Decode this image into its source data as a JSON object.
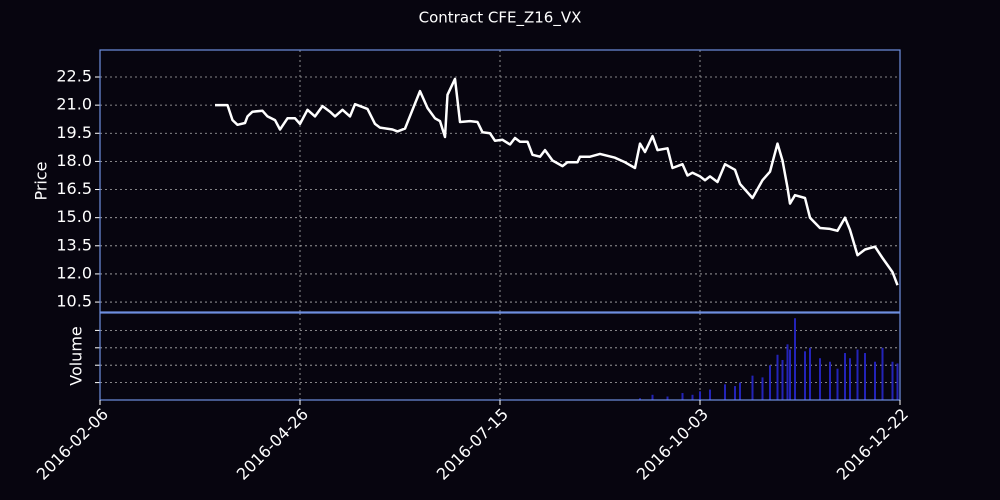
{
  "chart_data": [
    {
      "type": "line",
      "title": "Contract CFE_Z16_VX",
      "y_label": "Price",
      "color": "#ffffff",
      "grid": true,
      "xlim": [
        "2016-02-06",
        "2016-12-22"
      ],
      "ylim": [
        9.97,
        23.94
      ],
      "yticks": [
        10.5,
        {
          "value": 12,
          "label": "12.0"
        },
        13.5,
        {
          "value": 15,
          "label": "15.0"
        },
        16.5,
        {
          "value": 18,
          "label": "18.0"
        },
        19.5,
        {
          "value": 21,
          "label": "21.0"
        },
        22.5
      ],
      "x": [
        "2016-03-23",
        "2016-03-28",
        "2016-03-30",
        "2016-04-01",
        "2016-04-04",
        "2016-04-05",
        "2016-04-07",
        "2016-04-11",
        "2016-04-13",
        "2016-04-16",
        "2016-04-18",
        "2016-04-21",
        "2016-04-24",
        "2016-04-26",
        "2016-04-29",
        "2016-05-02",
        "2016-05-05",
        "2016-05-08",
        "2016-05-10",
        "2016-05-13",
        "2016-05-16",
        "2016-05-18",
        "2016-05-23",
        "2016-05-26",
        "2016-05-28",
        "2016-06-02",
        "2016-06-04",
        "2016-06-07",
        "2016-06-10",
        "2016-06-13",
        "2016-06-16",
        "2016-06-19",
        "2016-06-21",
        "2016-06-23",
        "2016-06-24",
        "2016-06-27",
        "2016-06-29",
        "2016-07-03",
        "2016-07-06",
        "2016-07-08",
        "2016-07-11",
        "2016-07-13",
        "2016-07-16",
        "2016-07-19",
        "2016-07-21",
        "2016-07-23",
        "2016-07-26",
        "2016-07-28",
        "2016-07-31",
        "2016-08-02",
        "2016-08-05",
        "2016-08-09",
        "2016-08-11",
        "2016-08-15",
        "2016-08-16",
        "2016-08-20",
        "2016-08-24",
        "2016-08-30",
        "2016-09-03",
        "2016-09-07",
        "2016-09-09",
        "2016-09-11",
        "2016-09-14",
        "2016-09-16",
        "2016-09-20",
        "2016-09-22",
        "2016-09-26",
        "2016-09-28",
        "2016-09-30",
        "2016-10-03",
        "2016-10-05",
        "2016-10-07",
        "2016-10-10",
        "2016-10-13",
        "2016-10-17",
        "2016-10-19",
        "2016-10-24",
        "2016-10-28",
        "2016-10-31",
        "2016-11-03",
        "2016-11-05",
        "2016-11-07",
        "2016-11-08",
        "2016-11-10",
        "2016-11-14",
        "2016-11-16",
        "2016-11-20",
        "2016-11-24",
        "2016-11-27",
        "2016-11-30",
        "2016-12-02",
        "2016-12-05",
        "2016-12-08",
        "2016-12-12",
        "2016-12-15",
        "2016-12-19",
        "2016-12-21"
      ],
      "values": [
        21.0,
        21.0,
        20.2,
        19.95,
        20.05,
        20.4,
        20.65,
        20.7,
        20.4,
        20.2,
        19.7,
        20.3,
        20.3,
        20.0,
        20.75,
        20.4,
        20.95,
        20.65,
        20.4,
        20.75,
        20.4,
        21.05,
        20.8,
        20.0,
        19.8,
        19.7,
        19.6,
        19.75,
        20.75,
        21.75,
        20.85,
        20.3,
        20.15,
        19.3,
        21.55,
        22.4,
        20.1,
        20.15,
        20.1,
        19.55,
        19.5,
        19.1,
        19.15,
        18.9,
        19.25,
        19.05,
        19.05,
        18.35,
        18.25,
        18.6,
        18.05,
        17.75,
        17.95,
        17.95,
        18.25,
        18.25,
        18.4,
        18.2,
        17.95,
        17.65,
        18.95,
        18.5,
        19.35,
        18.6,
        18.7,
        17.65,
        17.85,
        17.25,
        17.4,
        17.2,
        17.0,
        17.2,
        16.9,
        17.85,
        17.55,
        16.8,
        16.05,
        17.0,
        17.45,
        18.95,
        18.05,
        16.6,
        15.75,
        16.2,
        16.05,
        15.0,
        14.45,
        14.4,
        14.3,
        15.0,
        14.35,
        13.0,
        13.3,
        13.45,
        12.85,
        12.1,
        11.4
      ]
    },
    {
      "type": "bar",
      "y_label": "Volume",
      "color": "#2323b8",
      "grid": true,
      "xlim": [
        "2016-02-06",
        "2016-12-22"
      ],
      "xticks": [
        "2016-02-06",
        "2016-04-26",
        "2016-07-15",
        "2016-10-03",
        "2016-12-22"
      ],
      "ylim": [
        0,
        5000
      ],
      "yticks": [
        1000,
        2000,
        3000,
        4000
      ],
      "x": [
        "2016-09-09",
        "2016-09-14",
        "2016-09-20",
        "2016-09-26",
        "2016-09-30",
        "2016-10-03",
        "2016-10-07",
        "2016-10-13",
        "2016-10-17",
        "2016-10-19",
        "2016-10-24",
        "2016-10-28",
        "2016-10-31",
        "2016-11-03",
        "2016-11-05",
        "2016-11-07",
        "2016-11-08",
        "2016-11-10",
        "2016-11-14",
        "2016-11-16",
        "2016-11-20",
        "2016-11-24",
        "2016-11-27",
        "2016-11-30",
        "2016-12-02",
        "2016-12-05",
        "2016-12-08",
        "2016-12-12",
        "2016-12-15",
        "2016-12-19",
        "2016-12-21"
      ],
      "values": [
        100,
        300,
        200,
        400,
        300,
        500,
        600,
        900,
        800,
        1000,
        1400,
        1300,
        2000,
        2600,
        2300,
        3200,
        2900,
        4700,
        2800,
        3000,
        2400,
        2200,
        1800,
        2700,
        2400,
        2900,
        2700,
        2200,
        3000,
        2200,
        2100
      ]
    }
  ]
}
